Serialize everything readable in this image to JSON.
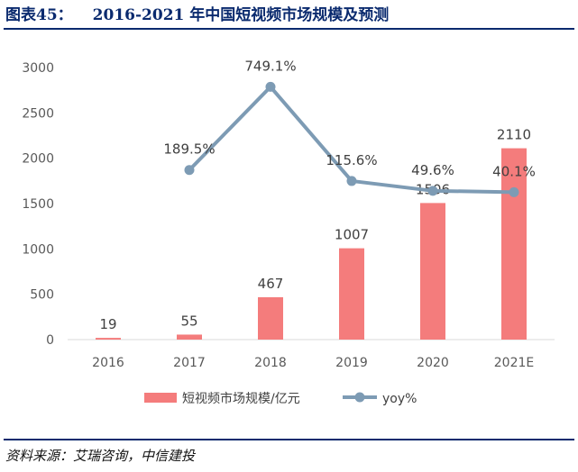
{
  "figure": {
    "label": "图表45：",
    "title": "2016-2021 年中国短视频市场规模及预测",
    "source": "资料来源：艾瑞咨询，中信建投"
  },
  "chart_data": {
    "type": "bar",
    "categories": [
      "2016",
      "2017",
      "2018",
      "2019",
      "2020",
      "2021E"
    ],
    "ylim": [
      0,
      3000
    ],
    "yticks": [
      "0",
      "500",
      "1000",
      "1500",
      "2000",
      "2500",
      "3000"
    ],
    "grid": false,
    "legend_position": "bottom",
    "series": [
      {
        "name": "短视频市场规模/亿元",
        "type": "bar",
        "color": "#f47c7c",
        "values": [
          19,
          55,
          467,
          1007,
          1506,
          2110
        ],
        "labels": [
          "19",
          "55",
          "467",
          "1007",
          "1506",
          "2110"
        ]
      },
      {
        "name": "yoy%",
        "type": "line",
        "color": "#7d9bb4",
        "values": [
          null,
          189.5,
          749.1,
          115.6,
          49.6,
          40.1
        ],
        "labels": [
          "",
          "189.5%",
          "749.1%",
          "115.6%",
          "49.6%",
          "40.1%"
        ]
      }
    ]
  }
}
